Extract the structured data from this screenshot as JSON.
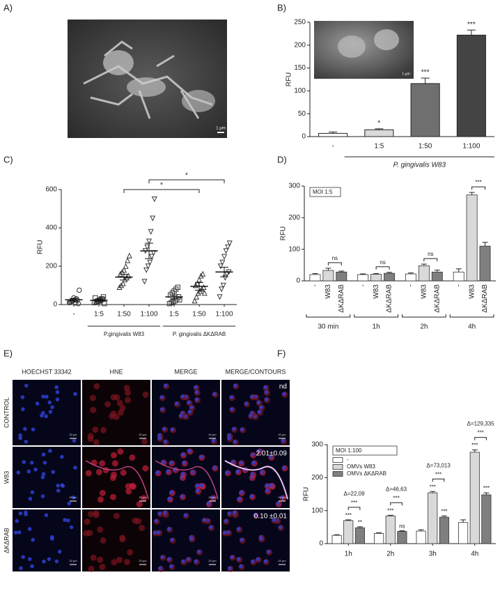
{
  "panels": {
    "a": "A)",
    "b": "B)",
    "c": "C)",
    "d": "D)",
    "e": "E)",
    "f": "F)"
  },
  "image_a": {
    "scale_bar": "1 µm"
  },
  "chart_data": [
    {
      "type": "bar",
      "ylabel": "RFU",
      "categories": [
        "-",
        "1:5",
        "1:50",
        "1:100"
      ],
      "values": [
        7,
        15,
        116,
        222
      ],
      "errors": [
        3,
        2,
        12,
        11
      ],
      "colors": [
        "#ffffff",
        "#d9d9d9",
        "#6f6f6f",
        "#444444"
      ],
      "annotations": [
        null,
        "*",
        "***",
        "***"
      ],
      "group_label": "P. gingivalis W83",
      "inset_scale_bar": "1 µm",
      "ylim": [
        0,
        250
      ],
      "yticks": [
        0,
        50,
        100,
        150,
        200,
        250
      ]
    },
    {
      "type": "strip",
      "ylabel": "RFU",
      "categories": [
        "-",
        "1:5",
        "1:50",
        "1:100",
        "1:5",
        "1:50",
        "1:100"
      ],
      "points": [
        [
          10,
          15,
          20,
          25,
          30,
          5,
          12,
          18,
          35,
          8,
          22,
          75
        ],
        [
          10,
          15,
          20,
          25,
          30,
          40,
          35,
          12,
          18,
          22,
          28,
          5
        ],
        [
          90,
          100,
          110,
          130,
          140,
          150,
          160,
          170,
          180,
          200,
          230,
          255
        ],
        [
          120,
          180,
          200,
          220,
          250,
          270,
          280,
          300,
          330,
          380,
          450,
          550
        ],
        [
          5,
          10,
          15,
          20,
          30,
          40,
          50,
          60,
          70,
          80,
          90,
          25
        ],
        [
          20,
          40,
          60,
          70,
          80,
          90,
          100,
          110,
          130,
          150,
          160,
          60
        ],
        [
          40,
          80,
          100,
          140,
          160,
          170,
          200,
          220,
          250,
          280,
          300,
          320
        ]
      ],
      "means": [
        25,
        22,
        143,
        280,
        40,
        95,
        170
      ],
      "sems": [
        7,
        5,
        15,
        40,
        10,
        20,
        25
      ],
      "markers": [
        "circle",
        "square",
        "triangle-up",
        "triangle-down",
        "square",
        "triangle-up",
        "triangle-down"
      ],
      "groups": [
        "P.gingivalis W83",
        "P. gingivalis ΔKΔRAB"
      ],
      "comparisons": [
        "*",
        "*"
      ],
      "ylim": [
        0,
        600
      ],
      "yticks": [
        0,
        200,
        400,
        600
      ]
    },
    {
      "type": "grouped_bar",
      "ylabel": "RFU",
      "note": "MOI 1:5",
      "legend": false,
      "categories": [
        "30 min",
        "1h",
        "2h",
        "4h"
      ],
      "series": [
        {
          "name": "-",
          "color": "#ffffff",
          "values": [
            20,
            20,
            22,
            28
          ],
          "errors": [
            3,
            2,
            3,
            10
          ]
        },
        {
          "name": "W83",
          "color": "#d9d9d9",
          "values": [
            33,
            21,
            48,
            272
          ],
          "errors": [
            7,
            2,
            5,
            8
          ]
        },
        {
          "name": "ΔKΔRAB",
          "color": "#7f7f7f",
          "values": [
            28,
            24,
            28,
            110
          ],
          "errors": [
            3,
            3,
            6,
            12
          ]
        }
      ],
      "significance": [
        "ns",
        "ns",
        "ns",
        "***"
      ],
      "ylim": [
        0,
        300
      ],
      "yticks": [
        0,
        100,
        200,
        300
      ]
    },
    {
      "type": "grouped_bar",
      "ylabel": "RFU",
      "note": "MOI 1:100",
      "legend": "top-left",
      "categories": [
        "1h",
        "2h",
        "3h",
        "4h"
      ],
      "series": [
        {
          "name": "-",
          "color": "#ffffff",
          "values": [
            25,
            31,
            38,
            64
          ],
          "errors": [
            2,
            2,
            4,
            8
          ]
        },
        {
          "name": "OMVs W83",
          "color": "#d9d9d9",
          "values": [
            70,
            84,
            154,
            277
          ],
          "errors": [
            2,
            2,
            4,
            7
          ],
          "annotations": [
            "***",
            "***",
            "***",
            "***"
          ]
        },
        {
          "name": "OMVs ΔKΔRAB",
          "color": "#7f7f7f",
          "values": [
            48,
            37,
            80,
            148
          ],
          "errors": [
            3,
            2,
            4,
            6
          ],
          "annotations": [
            "**",
            "ns",
            "***",
            "***"
          ]
        }
      ],
      "significance": [
        "***",
        "***",
        "***",
        "***"
      ],
      "deltas": [
        "Δ=22,09",
        "Δ=46,63",
        "Δ=73,013",
        "Δ=129,335"
      ],
      "ylim": [
        0,
        300
      ],
      "yticks": [
        0,
        100,
        200,
        300
      ]
    }
  ],
  "micrographs": {
    "columns": [
      "HOECHST 33342",
      "HNE",
      "MERGE",
      "MERGE/CONTOURS"
    ],
    "rows": [
      {
        "label": "CONTROL",
        "value": "nd"
      },
      {
        "label": "W83",
        "value": "2.01±0.09"
      },
      {
        "label": "ΔKΔRAB",
        "value": "0.10 ±0.01"
      }
    ],
    "scale_bar": "20 µm"
  }
}
